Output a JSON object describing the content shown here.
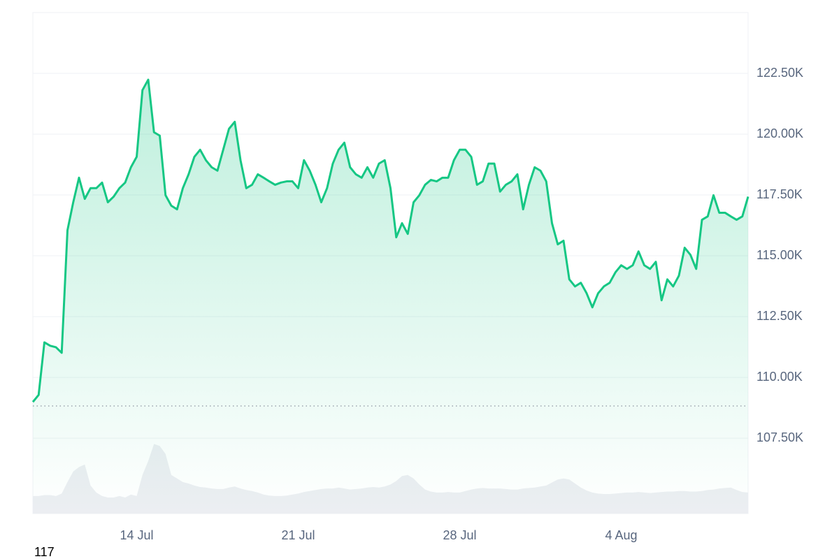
{
  "chart_data": {
    "type": "area-line",
    "values": [
      108990,
      109280,
      111440,
      111300,
      111240,
      111010,
      116050,
      117200,
      118210,
      117340,
      117780,
      117780,
      118010,
      117200,
      117430,
      117780,
      118010,
      118640,
      119070,
      121810,
      122240,
      120080,
      119940,
      117490,
      117060,
      116910,
      117780,
      118350,
      119070,
      119360,
      118930,
      118640,
      118500,
      119360,
      120220,
      120510,
      118930,
      117780,
      117920,
      118350,
      118210,
      118060,
      117920,
      118010,
      118060,
      118060,
      117780,
      118930,
      118500,
      117920,
      117200,
      117780,
      118790,
      119360,
      119650,
      118640,
      118350,
      118210,
      118640,
      118210,
      118790,
      118930,
      117780,
      115760,
      116340,
      115900,
      117200,
      117490,
      117920,
      118120,
      118060,
      118210,
      118210,
      118930,
      119360,
      119360,
      119070,
      117920,
      118060,
      118790,
      118790,
      117640,
      117920,
      118060,
      118350,
      116910,
      117920,
      118640,
      118500,
      118060,
      116340,
      115470,
      115620,
      114030,
      113740,
      113890,
      113460,
      112880,
      113460,
      113740,
      113890,
      114320,
      114610,
      114460,
      114610,
      115180,
      114610,
      114460,
      114750,
      113170,
      114030,
      113740,
      114180,
      115330,
      115040,
      114460,
      116480,
      116620,
      117490,
      116770,
      116770,
      116620,
      116480,
      116620,
      117430
    ],
    "color": "#16c784",
    "categories": [
      null,
      null,
      null,
      null,
      null,
      null,
      null,
      null,
      null,
      null,
      null,
      null,
      null,
      null,
      null,
      null,
      null,
      null,
      "14 Jul",
      null,
      null,
      null,
      null,
      null,
      null,
      null,
      null,
      null,
      null,
      null,
      null,
      null,
      null,
      null,
      null,
      null,
      null,
      null,
      null,
      null,
      null,
      null,
      null,
      null,
      null,
      null,
      "21 Jul",
      null,
      null,
      null,
      null,
      null,
      null,
      null,
      null,
      null,
      null,
      null,
      null,
      null,
      null,
      null,
      null,
      null,
      null,
      null,
      null,
      null,
      null,
      null,
      null,
      null,
      null,
      null,
      "28 Jul",
      null,
      null,
      null,
      null,
      null,
      null,
      null,
      null,
      null,
      null,
      null,
      null,
      null,
      null,
      null,
      null,
      null,
      null,
      null,
      null,
      null,
      null,
      null,
      null,
      null,
      null,
      null,
      "4 Aug",
      null,
      null,
      null,
      null,
      null,
      null,
      null,
      null,
      null,
      null,
      null,
      null,
      null,
      null,
      null,
      null,
      null,
      null,
      null,
      null,
      null,
      null
    ],
    "volume": {
      "axis": "y2",
      "color": "#eceef2",
      "values": [
        3.5,
        3.5,
        3.7,
        3.7,
        3.5,
        4,
        6.3,
        8.4,
        9.3,
        9.8,
        5.6,
        4.2,
        3.5,
        3.2,
        3.2,
        3.5,
        3.2,
        3.8,
        3.5,
        7.7,
        10.5,
        13.9,
        13.5,
        11.9,
        7.7,
        7,
        6.3,
        6,
        5.6,
        5.3,
        5.2,
        5,
        4.9,
        4.9,
        5.2,
        5.4,
        5,
        4.7,
        4.5,
        4.2,
        3.8,
        3.6,
        3.5,
        3.5,
        3.6,
        3.8,
        4,
        4.3,
        4.5,
        4.7,
        4.9,
        5,
        5,
        5.2,
        5,
        4.8,
        4.9,
        5,
        5.2,
        5.3,
        5.2,
        5.4,
        5.8,
        6.5,
        7.5,
        7.7,
        7,
        5.8,
        4.8,
        4.4,
        4.2,
        4.2,
        4.3,
        4.2,
        4.2,
        4.5,
        4.8,
        5,
        5.1,
        5,
        5,
        5,
        4.9,
        4.8,
        4.8,
        5,
        5.1,
        5.2,
        5.4,
        5.6,
        6.2,
        6.8,
        7,
        6.8,
        6,
        5.2,
        4.6,
        4.2,
        4,
        3.9,
        3.9,
        4,
        4.1,
        4.2,
        4.2,
        4.3,
        4.2,
        4.1,
        4.2,
        4.3,
        4.4,
        4.4,
        4.5,
        4.5,
        4.4,
        4.4,
        4.5,
        4.7,
        4.8,
        5,
        5.1,
        5.2,
        4.7,
        4.3,
        4.2
      ]
    },
    "ylim": [
      104400,
      125000
    ],
    "y2lim": [
      0,
      100
    ],
    "yticks": [
      {
        "value": 107500,
        "label": "107.50K"
      },
      {
        "value": 110000,
        "label": "110.00K"
      },
      {
        "value": 112500,
        "label": "112.50K"
      },
      {
        "value": 115000,
        "label": "115.00K"
      },
      {
        "value": 117500,
        "label": "117.50K"
      },
      {
        "value": 120000,
        "label": "120.00K"
      },
      {
        "value": 122500,
        "label": "122.50K"
      }
    ],
    "reference_line": 108825,
    "grid": true
  },
  "footer": "117"
}
